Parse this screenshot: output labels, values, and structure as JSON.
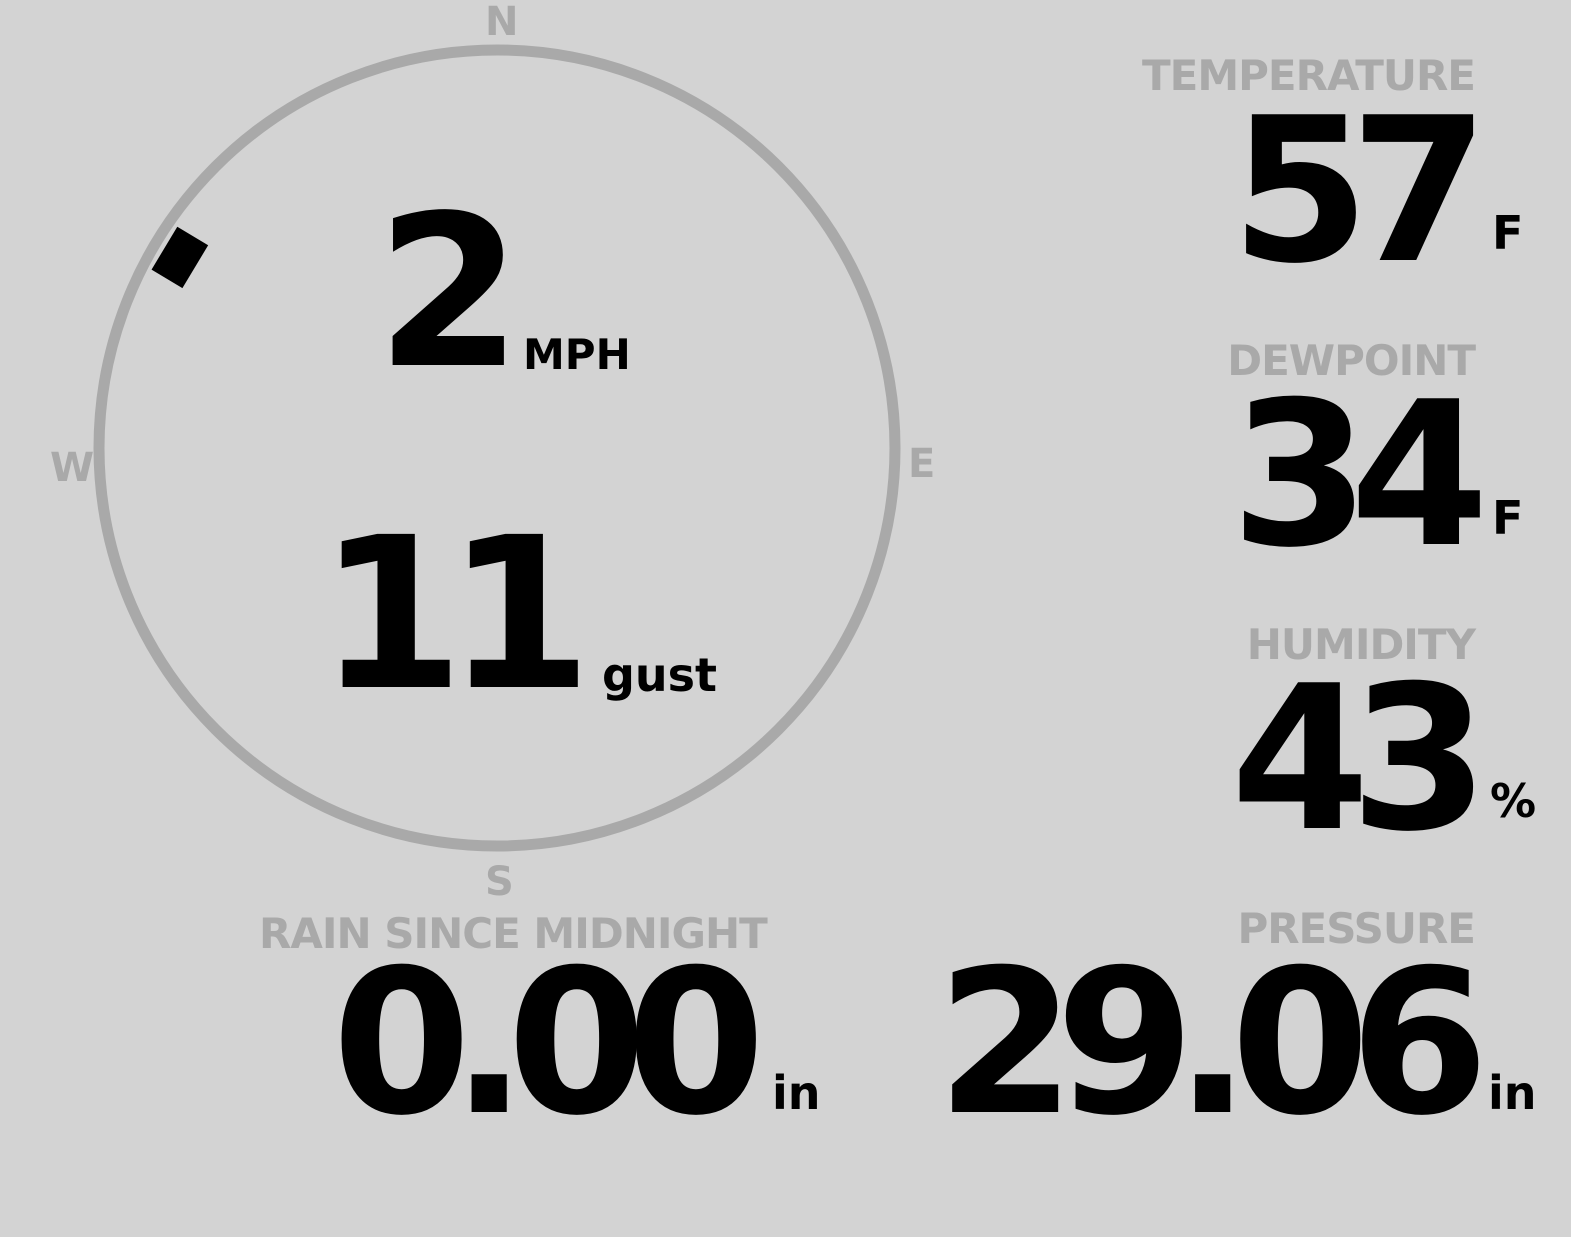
{
  "wind": {
    "speed": "2",
    "speed_unit": "MPH",
    "gust": "11",
    "gust_label": "gust",
    "direction_degrees": 301,
    "compass": {
      "n": "N",
      "e": "E",
      "s": "S",
      "w": "W"
    }
  },
  "temperature": {
    "label": "TEMPERATURE",
    "value": "57",
    "unit": "F"
  },
  "dewpoint": {
    "label": "DEWPOINT",
    "value": "34",
    "unit": "F"
  },
  "humidity": {
    "label": "HUMIDITY",
    "value": "43",
    "unit": "%"
  },
  "rain": {
    "label": "RAIN SINCE MIDNIGHT",
    "value": "0.00",
    "unit": "in"
  },
  "pressure": {
    "label": "PRESSURE",
    "value": "29.06",
    "unit": "in"
  },
  "colors": {
    "background": "#d3d3d3",
    "muted": "#a9a9a9",
    "text": "#000000"
  }
}
